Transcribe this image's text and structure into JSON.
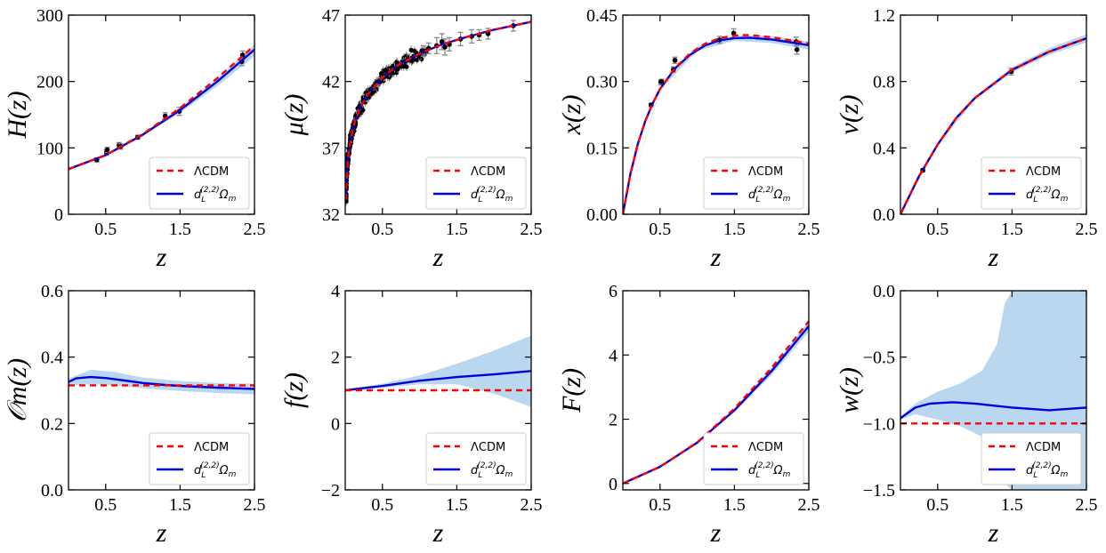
{
  "colors": {
    "lcdm": "#ff0000",
    "model": "#0000dd",
    "band": "#b3d3ee",
    "points": "#000000",
    "errbar": "#888888"
  },
  "legend": {
    "lcdm_label": "ΛCDM",
    "model_label_d": "d",
    "model_label_L": "L",
    "model_label_sup": "(2,2)",
    "model_label_Omega": "Ω",
    "model_label_m": "m"
  },
  "chart_data": [
    {
      "id": "Hz",
      "type": "line",
      "ylabel": "H(z)",
      "xlabel": "z",
      "xlim": [
        0.0,
        2.5
      ],
      "ylim": [
        0,
        300
      ],
      "xticks": [
        0.5,
        1.5,
        2.5
      ],
      "xtick_labels": [
        "0.5",
        "1.5",
        "2.5"
      ],
      "yticks": [
        0,
        100,
        200,
        300
      ],
      "ytick_labels": [
        "0",
        "100",
        "200",
        "300"
      ],
      "series": [
        {
          "name": "ΛCDM",
          "style": "dashed",
          "x": [
            0,
            0.5,
            1.0,
            1.5,
            2.0,
            2.5
          ],
          "y": [
            68,
            89,
            121,
            160,
            205,
            254
          ]
        },
        {
          "name": "d_L^(2,2) Ω_m",
          "style": "solid",
          "x": [
            0,
            0.5,
            1.0,
            1.5,
            2.0,
            2.5
          ],
          "y": [
            68,
            89,
            120,
            157,
            200,
            248
          ]
        }
      ],
      "band": {
        "x": [
          0,
          0.5,
          1.0,
          1.5,
          2.0,
          2.5
        ],
        "lower": [
          67,
          88,
          118,
          153,
          193,
          238
        ],
        "upper": [
          69,
          90,
          122,
          160,
          205,
          255
        ]
      },
      "points": [
        {
          "x": 0.38,
          "y": 82,
          "err": 3
        },
        {
          "x": 0.51,
          "y": 93,
          "err": 4
        },
        {
          "x": 0.52,
          "y": 97,
          "err": 4
        },
        {
          "x": 0.68,
          "y": 104,
          "err": 4
        },
        {
          "x": 0.7,
          "y": 102,
          "err": 4
        },
        {
          "x": 0.93,
          "y": 116,
          "err": 3
        },
        {
          "x": 1.3,
          "y": 148,
          "err": 5
        },
        {
          "x": 1.49,
          "y": 155,
          "err": 6
        },
        {
          "x": 2.33,
          "y": 230,
          "err": 6
        },
        {
          "x": 2.34,
          "y": 240,
          "err": 6
        }
      ]
    },
    {
      "id": "muz",
      "type": "scatter",
      "ylabel": "μ(z)",
      "xlabel": "z",
      "xlim": [
        0.0,
        2.5
      ],
      "ylim": [
        32,
        47
      ],
      "xticks": [
        0.5,
        1.5,
        2.5
      ],
      "xtick_labels": [
        "0.5",
        "1.5",
        "2.5"
      ],
      "yticks": [
        32,
        37,
        42,
        47
      ],
      "ytick_labels": [
        "32",
        "37",
        "42",
        "47"
      ],
      "series": [
        {
          "name": "ΛCDM",
          "style": "dashed",
          "x": [
            0.01,
            0.02,
            0.03,
            0.05,
            0.08,
            0.12,
            0.2,
            0.3,
            0.5,
            0.7,
            1.0,
            1.3,
            1.6,
            2.0,
            2.5
          ],
          "y": [
            33.1,
            34.7,
            35.6,
            36.8,
            37.8,
            38.8,
            40.0,
            41.0,
            42.3,
            43.2,
            44.1,
            44.8,
            45.3,
            45.9,
            46.5
          ]
        },
        {
          "name": "d_L^(2,2) Ω_m",
          "style": "solid",
          "x": [
            0.01,
            0.02,
            0.03,
            0.05,
            0.08,
            0.12,
            0.2,
            0.3,
            0.5,
            0.7,
            1.0,
            1.3,
            1.6,
            2.0,
            2.5
          ],
          "y": [
            33.1,
            34.7,
            35.6,
            36.8,
            37.8,
            38.8,
            40.0,
            41.0,
            42.3,
            43.2,
            44.1,
            44.8,
            45.3,
            45.9,
            46.5
          ]
        }
      ],
      "scatter_cloud": {
        "zmin": 0.01,
        "zmax": 1.1,
        "count": 260,
        "scatter": 0.35
      },
      "points": [
        {
          "x": 1.05,
          "y": 44.3,
          "err": 0.4
        },
        {
          "x": 1.12,
          "y": 44.5,
          "err": 0.4
        },
        {
          "x": 1.23,
          "y": 44.7,
          "err": 0.6
        },
        {
          "x": 1.3,
          "y": 45.0,
          "err": 0.6
        },
        {
          "x": 1.34,
          "y": 44.6,
          "err": 0.6
        },
        {
          "x": 1.4,
          "y": 44.8,
          "err": 0.5
        },
        {
          "x": 1.55,
          "y": 45.2,
          "err": 0.5
        },
        {
          "x": 1.7,
          "y": 45.4,
          "err": 0.5
        },
        {
          "x": 1.8,
          "y": 45.5,
          "err": 0.4
        },
        {
          "x": 1.92,
          "y": 45.6,
          "err": 0.4
        },
        {
          "x": 2.26,
          "y": 46.2,
          "err": 0.4
        }
      ]
    },
    {
      "id": "xz",
      "type": "line",
      "ylabel": "x(z)",
      "xlabel": "z",
      "xlim": [
        0.0,
        2.5
      ],
      "ylim": [
        0.0,
        0.45
      ],
      "xticks": [
        0.5,
        1.5,
        2.5
      ],
      "xtick_labels": [
        "0.5",
        "1.5",
        "2.5"
      ],
      "yticks": [
        0.0,
        0.15,
        0.3,
        0.45
      ],
      "ytick_labels": [
        "0.00",
        "0.15",
        "0.30",
        "0.45"
      ],
      "series": [
        {
          "name": "ΛCDM",
          "style": "dashed",
          "x": [
            0,
            0.1,
            0.2,
            0.3,
            0.4,
            0.5,
            0.7,
            0.9,
            1.1,
            1.3,
            1.5,
            1.7,
            2.0,
            2.5
          ],
          "y": [
            0.0,
            0.09,
            0.158,
            0.21,
            0.25,
            0.283,
            0.33,
            0.363,
            0.385,
            0.398,
            0.404,
            0.405,
            0.4,
            0.386
          ]
        },
        {
          "name": "d_L^(2,2) Ω_m",
          "style": "solid",
          "x": [
            0,
            0.1,
            0.2,
            0.3,
            0.4,
            0.5,
            0.7,
            0.9,
            1.1,
            1.3,
            1.5,
            1.7,
            2.0,
            2.5
          ],
          "y": [
            0.0,
            0.09,
            0.158,
            0.21,
            0.25,
            0.283,
            0.329,
            0.36,
            0.381,
            0.393,
            0.398,
            0.399,
            0.395,
            0.382
          ]
        }
      ],
      "band": {
        "x": [
          0,
          0.5,
          1.0,
          1.5,
          2.0,
          2.5
        ],
        "lower": [
          0.0,
          0.281,
          0.369,
          0.392,
          0.387,
          0.372
        ],
        "upper": [
          0.0,
          0.285,
          0.379,
          0.404,
          0.403,
          0.39
        ]
      },
      "points": [
        {
          "x": 0.38,
          "y": 0.247,
          "err": 0.004
        },
        {
          "x": 0.51,
          "y": 0.298,
          "err": 0.005
        },
        {
          "x": 0.52,
          "y": 0.3,
          "err": 0.005
        },
        {
          "x": 0.68,
          "y": 0.327,
          "err": 0.006
        },
        {
          "x": 0.7,
          "y": 0.348,
          "err": 0.007
        },
        {
          "x": 1.3,
          "y": 0.394,
          "err": 0.008
        },
        {
          "x": 1.49,
          "y": 0.409,
          "err": 0.01
        },
        {
          "x": 2.33,
          "y": 0.39,
          "err": 0.01
        },
        {
          "x": 2.34,
          "y": 0.372,
          "err": 0.01
        }
      ]
    },
    {
      "id": "vz",
      "type": "line",
      "ylabel": "v(z)",
      "xlabel": "z",
      "xlim": [
        0.0,
        2.5
      ],
      "ylim": [
        0.0,
        1.2
      ],
      "xticks": [
        0.5,
        1.5,
        2.5
      ],
      "xtick_labels": [
        "0.5",
        "1.5",
        "2.5"
      ],
      "yticks": [
        0.0,
        0.4,
        0.8,
        1.2
      ],
      "ytick_labels": [
        "0.0",
        "0.4",
        "0.8",
        "1.2"
      ],
      "series": [
        {
          "name": "ΛCDM",
          "style": "dashed",
          "x": [
            0,
            0.25,
            0.5,
            0.75,
            1.0,
            1.5,
            2.0,
            2.5
          ],
          "y": [
            0.0,
            0.23,
            0.42,
            0.58,
            0.7,
            0.87,
            0.98,
            1.06
          ]
        },
        {
          "name": "d_L^(2,2) Ω_m",
          "style": "solid",
          "x": [
            0,
            0.25,
            0.5,
            0.75,
            1.0,
            1.5,
            2.0,
            2.5
          ],
          "y": [
            0.0,
            0.23,
            0.42,
            0.58,
            0.7,
            0.87,
            0.98,
            1.06
          ]
        }
      ],
      "band": {
        "x": [
          0,
          0.5,
          1.0,
          1.5,
          2.0,
          2.5
        ],
        "lower": [
          0.0,
          0.415,
          0.69,
          0.855,
          0.96,
          1.035
        ],
        "upper": [
          0.0,
          0.425,
          0.71,
          0.885,
          1.0,
          1.085
        ]
      },
      "points": [
        {
          "x": 0.3,
          "y": 0.265,
          "err": 0.01
        },
        {
          "x": 1.49,
          "y": 0.86,
          "err": 0.02
        }
      ]
    },
    {
      "id": "Omz",
      "type": "line",
      "ylabel": "𝒪m(z)",
      "xlabel": "z",
      "xlim": [
        0.0,
        2.5
      ],
      "ylim": [
        0.0,
        0.6
      ],
      "xticks": [
        0.5,
        1.5,
        2.5
      ],
      "xtick_labels": [
        "0.5",
        "1.5",
        "2.5"
      ],
      "yticks": [
        0.0,
        0.2,
        0.4,
        0.6
      ],
      "ytick_labels": [
        "0.0",
        "0.2",
        "0.4",
        "0.6"
      ],
      "series": [
        {
          "name": "ΛCDM",
          "style": "dashed",
          "x": [
            0,
            2.5
          ],
          "y": [
            0.315,
            0.315
          ]
        },
        {
          "name": "d_L^(2,2) Ω_m",
          "style": "solid",
          "x": [
            0,
            0.1,
            0.3,
            0.5,
            0.8,
            1.0,
            1.3,
            1.6,
            2.0,
            2.5
          ],
          "y": [
            0.325,
            0.336,
            0.34,
            0.337,
            0.328,
            0.322,
            0.316,
            0.312,
            0.308,
            0.304
          ]
        }
      ],
      "band": {
        "x": [
          0,
          0.3,
          0.6,
          1.0,
          1.5,
          2.0,
          2.5
        ],
        "lower": [
          0.315,
          0.318,
          0.315,
          0.306,
          0.298,
          0.292,
          0.288
        ],
        "upper": [
          0.335,
          0.362,
          0.356,
          0.338,
          0.328,
          0.322,
          0.32
        ]
      }
    },
    {
      "id": "fz",
      "type": "line",
      "ylabel": "f(z)",
      "xlabel": "z",
      "xlim": [
        0.0,
        2.5
      ],
      "ylim": [
        -2,
        4
      ],
      "xticks": [
        0.5,
        1.5,
        2.5
      ],
      "xtick_labels": [
        "0.5",
        "1.5",
        "2.5"
      ],
      "yticks": [
        -2,
        0,
        2,
        4
      ],
      "ytick_labels": [
        "−2",
        "0",
        "2",
        "4"
      ],
      "series": [
        {
          "name": "ΛCDM",
          "style": "dashed",
          "x": [
            0,
            2.5
          ],
          "y": [
            1.0,
            1.0
          ]
        },
        {
          "name": "d_L^(2,2) Ω_m",
          "style": "solid",
          "x": [
            0,
            0.5,
            1.0,
            1.5,
            2.0,
            2.5
          ],
          "y": [
            1.0,
            1.13,
            1.29,
            1.4,
            1.48,
            1.58
          ]
        }
      ],
      "band": {
        "x": [
          0,
          0.5,
          1.0,
          1.5,
          2.0,
          2.5
        ],
        "lower": [
          0.98,
          1.08,
          1.18,
          1.18,
          0.9,
          0.5
        ],
        "upper": [
          1.02,
          1.2,
          1.45,
          1.8,
          2.2,
          2.65
        ]
      }
    },
    {
      "id": "Fz",
      "type": "line",
      "ylabel": "F(z)",
      "xlabel": "z",
      "xlim": [
        0.0,
        2.5
      ],
      "ylim": [
        -0.2,
        6
      ],
      "xticks": [
        0.5,
        1.5,
        2.5
      ],
      "xtick_labels": [
        "0.5",
        "1.5",
        "2.5"
      ],
      "yticks": [
        0,
        2,
        4,
        6
      ],
      "ytick_labels": [
        "0",
        "2",
        "4",
        "6"
      ],
      "series": [
        {
          "name": "ΛCDM",
          "style": "dashed",
          "x": [
            0,
            0.5,
            1.0,
            1.5,
            2.0,
            2.5
          ],
          "y": [
            0.0,
            0.52,
            1.28,
            2.33,
            3.6,
            5.05
          ]
        },
        {
          "name": "d_L^(2,2) Ω_m",
          "style": "solid",
          "x": [
            0,
            0.5,
            1.0,
            1.5,
            2.0,
            2.5
          ],
          "y": [
            0.0,
            0.52,
            1.27,
            2.28,
            3.5,
            4.9
          ]
        }
      ],
      "band": {
        "x": [
          0,
          0.5,
          1.0,
          1.5,
          2.0,
          2.5
        ],
        "lower": [
          0.0,
          0.51,
          1.25,
          2.22,
          3.38,
          4.72
        ],
        "upper": [
          0.0,
          0.53,
          1.29,
          2.34,
          3.62,
          5.05
        ]
      }
    },
    {
      "id": "wz",
      "type": "line",
      "ylabel": "w(z)",
      "xlabel": "z",
      "xlim": [
        0.0,
        2.5
      ],
      "ylim": [
        -1.5,
        0.0
      ],
      "xticks": [
        0.5,
        1.5,
        2.5
      ],
      "xtick_labels": [
        "0.5",
        "1.5",
        "2.5"
      ],
      "yticks": [
        -1.5,
        -1.0,
        -0.5,
        0.0
      ],
      "ytick_labels": [
        "−1.5",
        "−1.0",
        "−0.5",
        "0.0"
      ],
      "series": [
        {
          "name": "ΛCDM",
          "style": "dashed",
          "x": [
            0,
            2.5
          ],
          "y": [
            -1.0,
            -1.0
          ]
        },
        {
          "name": "d_L^(2,2) Ω_m",
          "style": "solid",
          "x": [
            0,
            0.2,
            0.4,
            0.7,
            1.0,
            1.5,
            2.0,
            2.5
          ],
          "y": [
            -0.96,
            -0.88,
            -0.85,
            -0.84,
            -0.85,
            -0.88,
            -0.9,
            -0.88
          ]
        }
      ],
      "band": {
        "x": [
          0,
          0.2,
          0.5,
          0.8,
          1.1,
          1.3,
          1.4,
          1.5,
          1.8,
          2.2,
          2.5
        ],
        "lower": [
          -0.97,
          -0.93,
          -0.97,
          -1.02,
          -1.1,
          -1.25,
          -1.45,
          -1.5,
          -1.5,
          -1.5,
          -1.5
        ],
        "upper": [
          -0.95,
          -0.85,
          -0.76,
          -0.7,
          -0.6,
          -0.4,
          -0.1,
          0.0,
          0.0,
          0.0,
          0.0
        ]
      }
    }
  ]
}
